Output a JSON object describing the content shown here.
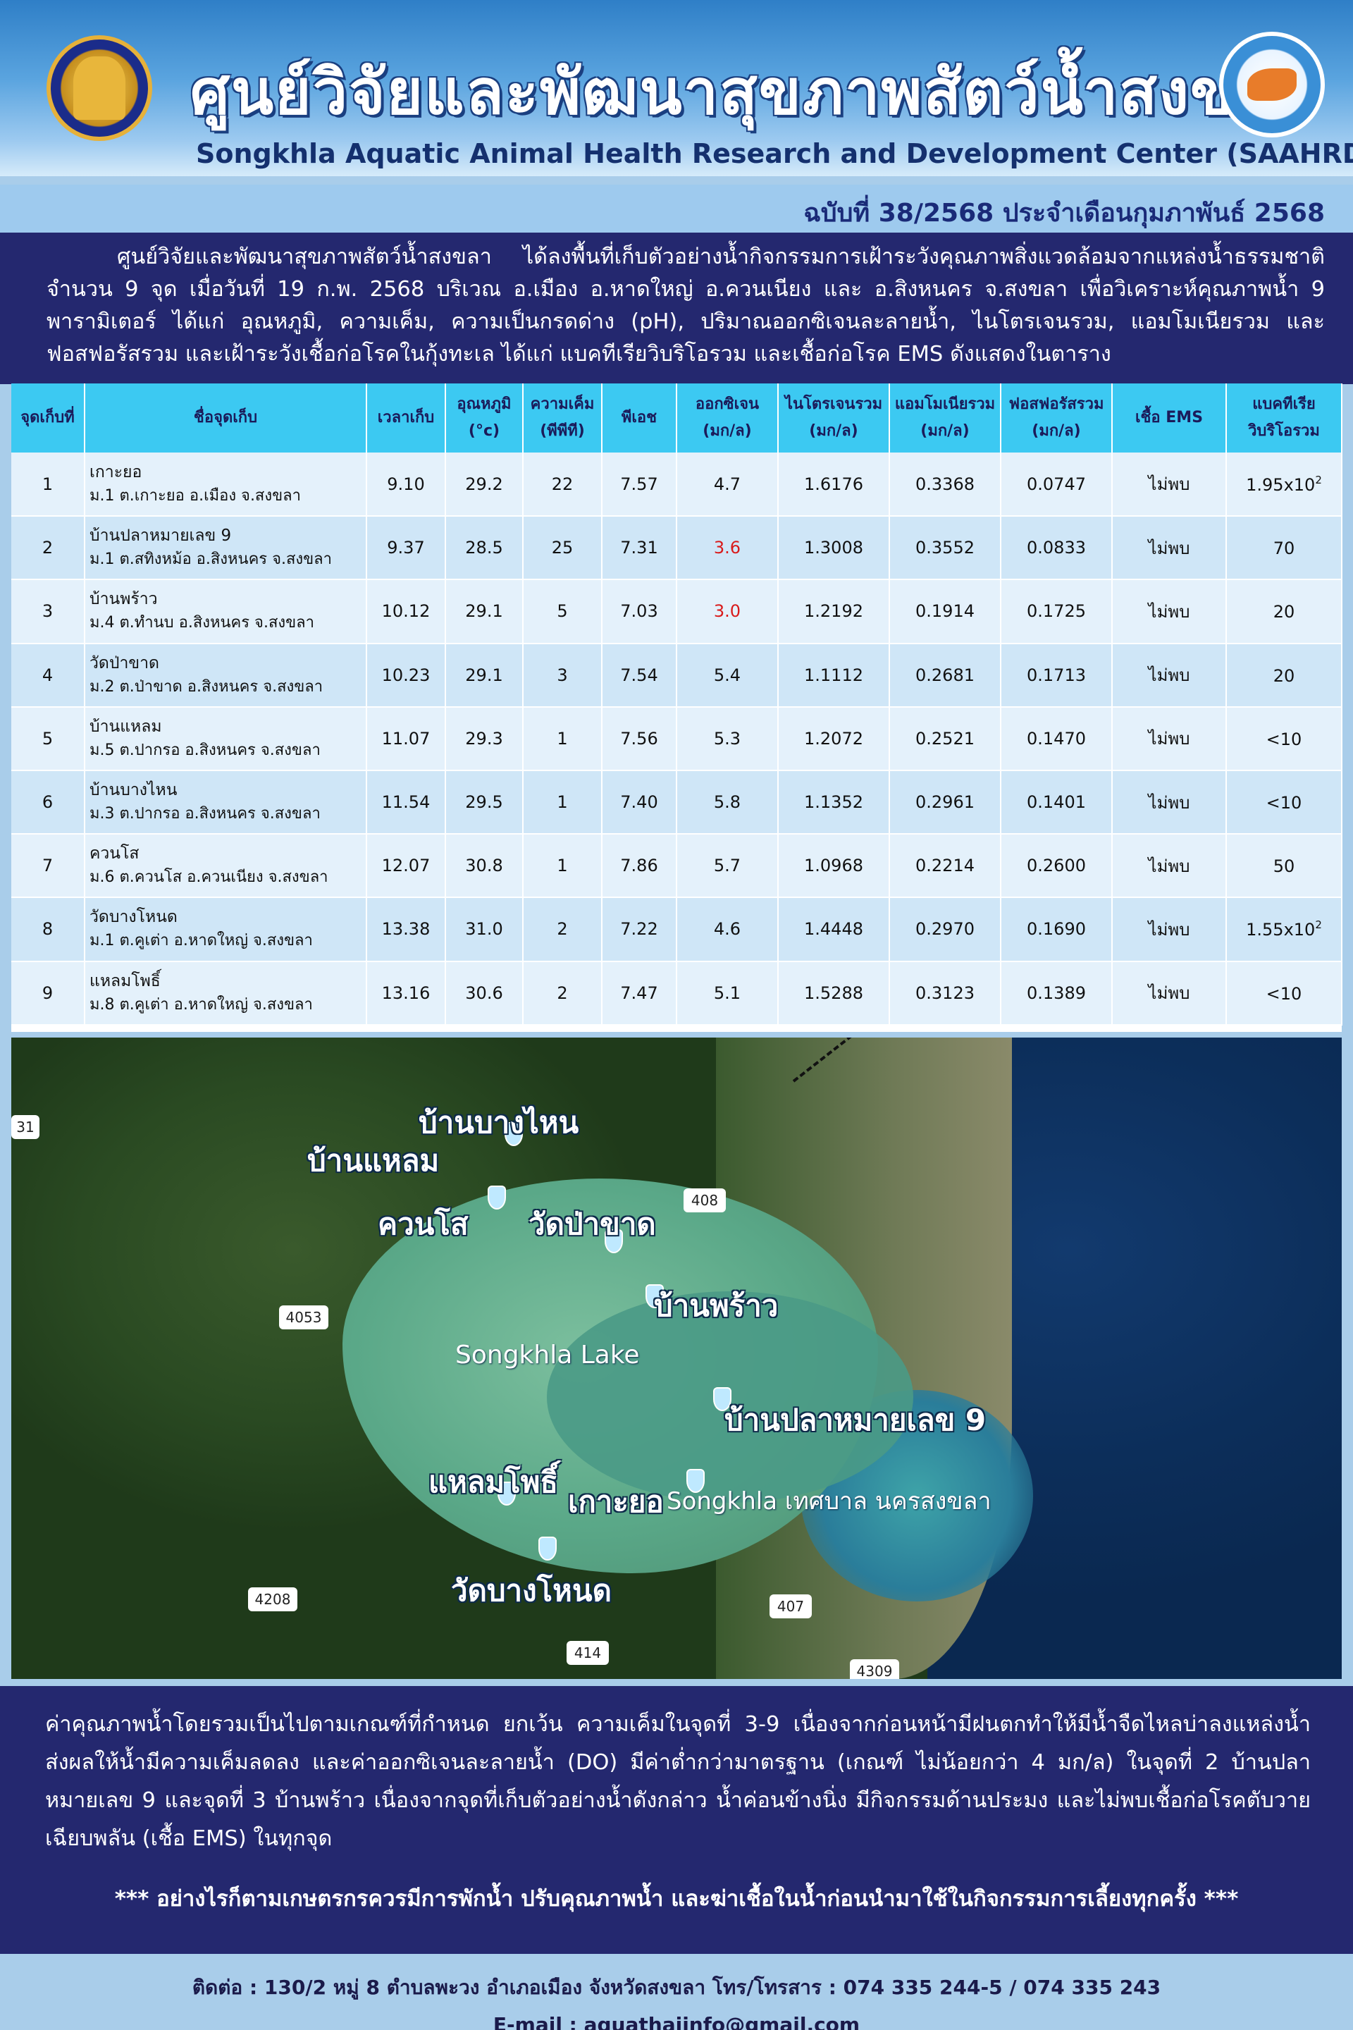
{
  "header": {
    "title_th": "ศูนย์วิจัยและพัฒนาสุขภาพสัตว์น้ำสงขลา",
    "title_en": "Songkhla Aquatic Animal Health Research and Development Center (SAAHRDC)",
    "logo_left_icon": "department-of-fisheries-seal",
    "logo_right_icon": "saahrdc-shrimp-logo"
  },
  "issue": "ฉบับที่ 38/2568 ประจำเดือนกุมภาพันธ์ 2568",
  "intro": "ศูนย์วิจัยและพัฒนาสุขภาพสัตว์น้ำสงขลา ได้ลงพื้นที่เก็บตัวอย่างน้ำกิจกรรมการเฝ้าระวังคุณภาพสิ่งแวดล้อมจากแหล่งน้ำธรรมชาติ จำนวน 9 จุด เมื่อวันที่ 19 ก.พ. 2568 บริเวณ อ.เมือง อ.หาดใหญ่ อ.ควนเนียง และ อ.สิงหนคร จ.สงขลา เพื่อวิเคราะห์คุณภาพน้ำ 9 พารามิเตอร์ ได้แก่ อุณหภูมิ, ความเค็ม, ความเป็นกรดด่าง (pH), ปริมาณออกซิเจนละลายน้ำ, ไนโตรเจนรวม, แอมโมเนียรวม และฟอสฟอรัสรวม และเฝ้าระวังเชื้อก่อโรคในกุ้งทะเล ได้แก่ แบคทีเรียวิบริโอรวม และเชื้อก่อโรค EMS ดังแสดงในตาราง",
  "table": {
    "headers": {
      "no": "จุดเก็บที่",
      "site": "ชื่อจุดเก็บ",
      "time": "เวลาเก็บ",
      "temp1": "อุณหภูมิ",
      "temp2": "(°c)",
      "sal1": "ความเค็ม",
      "sal2": "(พีพีที)",
      "ph": "พีเอช",
      "do1": "ออกซิเจน",
      "do2": "(มก/ล)",
      "tn1": "ไนโตรเจนรวม",
      "tn2": "(มก/ล)",
      "ta1": "แอมโมเนียรวม",
      "ta2": "(มก/ล)",
      "tp1": "ฟอสฟอรัสรวม",
      "tp2": "(มก/ล)",
      "ems": "เชื้อ EMS",
      "vib1": "แบคทีเรีย",
      "vib2": "วิบริโอรวม"
    },
    "rows": [
      {
        "no": "1",
        "name": "เกาะยอ",
        "addr": "ม.1 ต.เกาะยอ อ.เมือง จ.สงขลา",
        "time": "9.10",
        "temp": "29.2",
        "sal": "22",
        "ph": "7.57",
        "do": "4.7",
        "tn": "1.6176",
        "ta": "0.3368",
        "tp": "0.0747",
        "ems": "ไม่พบ",
        "vib": "1.95x10",
        "vib_exp": "2"
      },
      {
        "no": "2",
        "name": "บ้านปลาหมายเลข 9",
        "addr": "ม.1 ต.สทิงหม้อ อ.สิงหนคร จ.สงขลา",
        "time": "9.37",
        "temp": "28.5",
        "sal": "25",
        "ph": "7.31",
        "do": "3.6",
        "tn": "1.3008",
        "ta": "0.3552",
        "tp": "0.0833",
        "ems": "ไม่พบ",
        "vib": "70",
        "vib_exp": ""
      },
      {
        "no": "3",
        "name": "บ้านพร้าว",
        "addr": "ม.4 ต.ทำนบ อ.สิงหนคร จ.สงขลา",
        "time": "10.12",
        "temp": "29.1",
        "sal": "5",
        "ph": "7.03",
        "do": "3.0",
        "tn": "1.2192",
        "ta": "0.1914",
        "tp": "0.1725",
        "ems": "ไม่พบ",
        "vib": "20",
        "vib_exp": ""
      },
      {
        "no": "4",
        "name": "วัดป่าขาด",
        "addr": "ม.2 ต.ป่าขาด อ.สิงหนคร จ.สงขลา",
        "time": "10.23",
        "temp": "29.1",
        "sal": "3",
        "ph": "7.54",
        "do": "5.4",
        "tn": "1.1112",
        "ta": "0.2681",
        "tp": "0.1713",
        "ems": "ไม่พบ",
        "vib": "20",
        "vib_exp": ""
      },
      {
        "no": "5",
        "name": "บ้านแหลม",
        "addr": "ม.5 ต.ปากรอ อ.สิงหนคร จ.สงขลา",
        "time": "11.07",
        "temp": "29.3",
        "sal": "1",
        "ph": "7.56",
        "do": "5.3",
        "tn": "1.2072",
        "ta": "0.2521",
        "tp": "0.1470",
        "ems": "ไม่พบ",
        "vib": "<10",
        "vib_exp": ""
      },
      {
        "no": "6",
        "name": "บ้านบางไหน",
        "addr": "ม.3 ต.ปากรอ อ.สิงหนคร จ.สงขลา",
        "time": "11.54",
        "temp": "29.5",
        "sal": "1",
        "ph": "7.40",
        "do": "5.8",
        "tn": "1.1352",
        "ta": "0.2961",
        "tp": "0.1401",
        "ems": "ไม่พบ",
        "vib": "<10",
        "vib_exp": ""
      },
      {
        "no": "7",
        "name": "ควนโส",
        "addr": "ม.6 ต.ควนโส อ.ควนเนียง จ.สงขลา",
        "time": "12.07",
        "temp": "30.8",
        "sal": "1",
        "ph": "7.86",
        "do": "5.7",
        "tn": "1.0968",
        "ta": "0.2214",
        "tp": "0.2600",
        "ems": "ไม่พบ",
        "vib": "50",
        "vib_exp": ""
      },
      {
        "no": "8",
        "name": "วัดบางโหนด",
        "addr": "ม.1 ต.คูเต่า อ.หาดใหญ่ จ.สงขลา",
        "time": "13.38",
        "temp": "31.0",
        "sal": "2",
        "ph": "7.22",
        "do": "4.6",
        "tn": "1.4448",
        "ta": "0.2970",
        "tp": "0.1690",
        "ems": "ไม่พบ",
        "vib": "1.55x10",
        "vib_exp": "2"
      },
      {
        "no": "9",
        "name": "แหลมโพธิ์",
        "addr": "ม.8 ต.คูเต่า อ.หาดใหญ่ จ.สงขลา",
        "time": "13.16",
        "temp": "30.6",
        "sal": "2",
        "ph": "7.47",
        "do": "5.1",
        "tn": "1.5288",
        "ta": "0.3123",
        "tp": "0.1389",
        "ems": "ไม่พบ",
        "vib": "<10",
        "vib_exp": ""
      }
    ],
    "low_do_color": "#d91b1b"
  },
  "map": {
    "labels": {
      "bangnai": "บ้านบางไหน",
      "banlaem": "บ้านแหลม",
      "khuanso": "ควนโส",
      "watpakhat": "วัดป่าขาด",
      "banphrao": "บ้านพร้าว",
      "lake": "Songkhla Lake",
      "banpla": "บ้านปลาหมายเลข 9",
      "laempho": "แหลมโพธิ์",
      "kohyo": "เกาะยอ",
      "city": "Songkhla เทศบาล นครสงขลา",
      "watbangnod": "วัดบางโหนด"
    },
    "roads": {
      "r31": "31",
      "r408": "408",
      "r4053": "4053",
      "r4208": "4208",
      "r407": "407",
      "r414": "414",
      "r4309": "4309"
    }
  },
  "summary": {
    "body": "ค่าคุณภาพน้ำโดยรวมเป็นไปตามเกณฑ์ที่กำหนด ยกเว้น ความเค็มในจุดที่ 3-9 เนื่องจากก่อนหน้ามีฝนตกทำให้มีน้ำจืดไหลบ่าลงแหล่งน้ำ ส่งผลให้น้ำมีความเค็มลดลง และค่าออกซิเจนละลายน้ำ (DO) มีค่าต่ำกว่ามาตรฐาน (เกณฑ์ ไม่น้อยกว่า 4 มก/ล) ในจุดที่ 2 บ้านปลาหมายเลข 9 และจุดที่ 3 บ้านพร้าว เนื่องจากจุดที่เก็บตัวอย่างน้ำดังกล่าว น้ำค่อนข้างนิ่ง มีกิจกรรมด้านประมง และไม่พบเชื้อก่อโรคตับวายเฉียบพลัน (เชื้อ EMS) ในทุกจุด",
    "warning": "*** อย่างไรก็ตามเกษตรกรควรมีการพักน้ำ ปรับคุณภาพน้ำ และฆ่าเชื้อในน้ำก่อนนำมาใช้ในกิจกรรมการเลี้ยงทุกครั้ง ***"
  },
  "footer": {
    "contact": "ติดต่อ : 130/2 หมู่ 8 ตำบลพะวง อำเภอเมือง จังหวัดสงขลา โทร/โทรสาร : 074 335 244-5 / 074 335 243",
    "email": "E-mail : aquathaiinfo@gmail.com"
  }
}
